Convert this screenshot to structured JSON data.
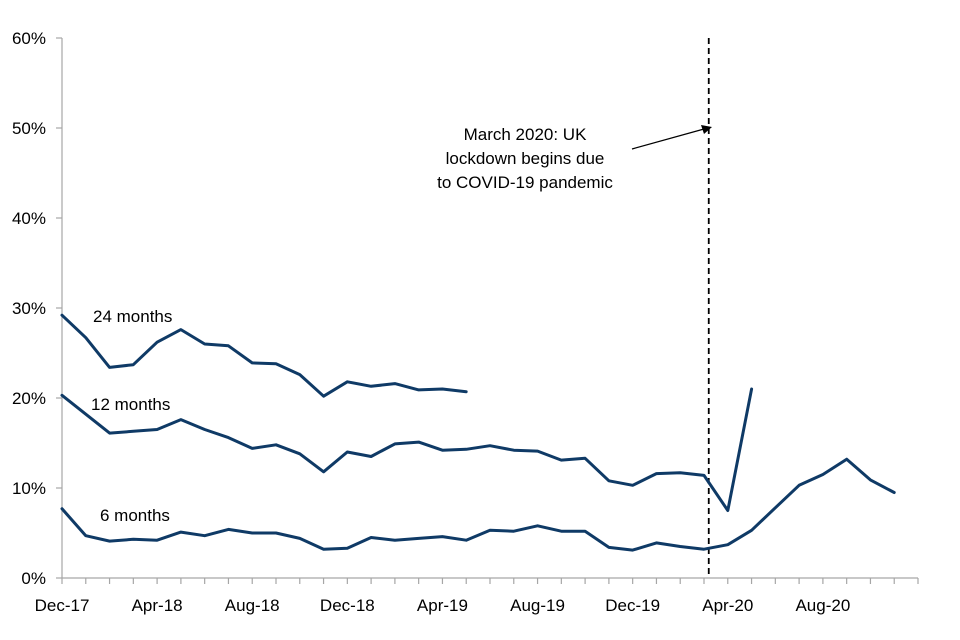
{
  "chart_data": {
    "type": "line",
    "title": "",
    "xlabel": "",
    "ylabel": "",
    "ylim": [
      0,
      60
    ],
    "yticks": [
      0,
      10,
      20,
      30,
      40,
      50,
      60
    ],
    "ytick_labels": [
      "0%",
      "10%",
      "20%",
      "30%",
      "40%",
      "50%",
      "60%"
    ],
    "xticks": [
      {
        "index": 0,
        "label": "Dec-17"
      },
      {
        "index": 4,
        "label": "Apr-18"
      },
      {
        "index": 8,
        "label": "Aug-18"
      },
      {
        "index": 12,
        "label": "Dec-18"
      },
      {
        "index": 16,
        "label": "Apr-19"
      },
      {
        "index": 20,
        "label": "Aug-19"
      },
      {
        "index": 24,
        "label": "Dec-19"
      },
      {
        "index": 28,
        "label": "Apr-20"
      },
      {
        "index": 32,
        "label": "Aug-20"
      }
    ],
    "x_count": 37,
    "line_color": "#0f3a66",
    "series": [
      {
        "name": "24 months",
        "values": [
          29.2,
          26.7,
          23.4,
          23.7,
          26.2,
          27.6,
          26.0,
          25.8,
          23.9,
          23.8,
          22.6,
          20.2,
          21.8,
          21.3,
          21.6,
          20.9,
          21.0,
          20.7
        ]
      },
      {
        "name": "12 months",
        "values": [
          20.3,
          18.2,
          16.1,
          16.3,
          16.5,
          17.6,
          16.5,
          15.6,
          14.4,
          14.8,
          13.8,
          11.8,
          14.0,
          13.5,
          14.9,
          15.1,
          14.2,
          14.3,
          14.7,
          14.2,
          14.1,
          13.1,
          13.3,
          10.8,
          10.3,
          11.6,
          11.7,
          11.4,
          7.5,
          21.0
        ]
      },
      {
        "name": "6 months",
        "values": [
          7.7,
          4.7,
          4.1,
          4.3,
          4.2,
          5.1,
          4.7,
          5.4,
          5.0,
          5.0,
          4.4,
          3.2,
          3.3,
          4.5,
          4.2,
          4.4,
          4.6,
          4.2,
          5.3,
          5.2,
          5.8,
          5.2,
          5.2,
          3.4,
          3.1,
          3.9,
          3.5,
          3.2,
          3.7,
          5.3,
          7.8,
          10.3,
          11.5,
          13.2,
          10.9,
          9.5
        ]
      }
    ],
    "event_line": {
      "index": 27.2,
      "style": "dashed"
    },
    "annotation": {
      "lines": [
        "March 2020: UK",
        "lockdown begins due",
        "to COVID-19 pandemic"
      ]
    }
  }
}
